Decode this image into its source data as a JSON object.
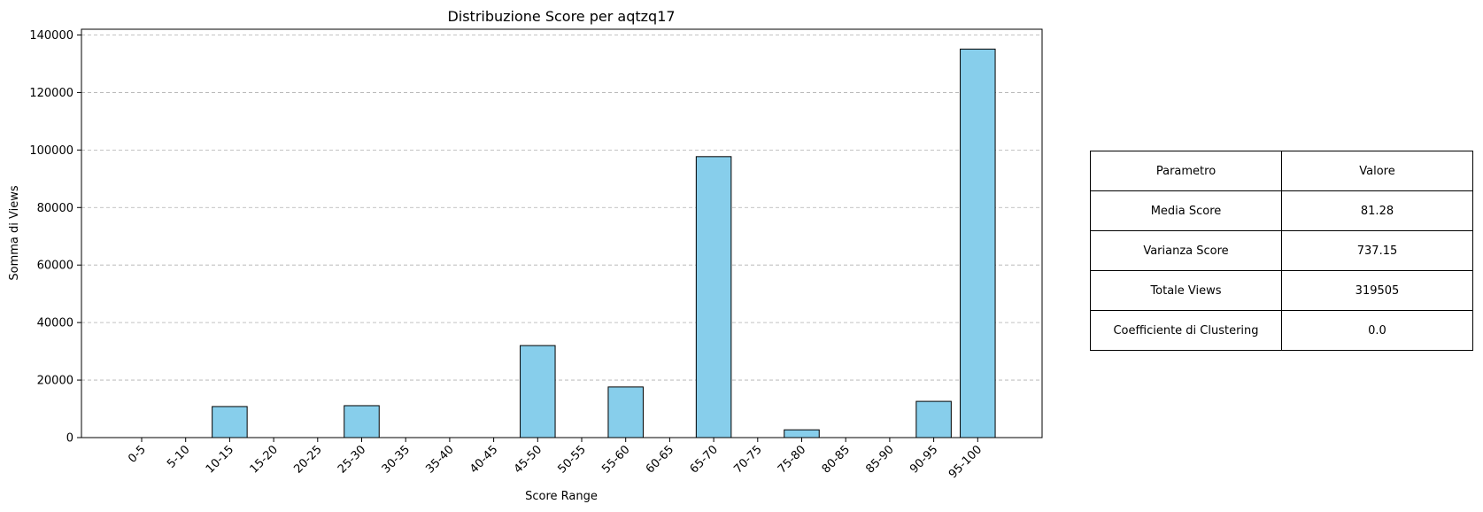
{
  "chart_data": {
    "type": "bar",
    "title": "Distribuzione Score per aqtzq17",
    "xlabel": "Score Range",
    "ylabel": "Somma di Views",
    "categories": [
      "0-5",
      "5-10",
      "10-15",
      "15-20",
      "20-25",
      "25-30",
      "30-35",
      "35-40",
      "40-45",
      "45-50",
      "50-55",
      "55-60",
      "60-65",
      "65-70",
      "70-75",
      "75-80",
      "80-85",
      "85-90",
      "90-95",
      "95-100"
    ],
    "values": [
      0,
      0,
      10800,
      0,
      0,
      11100,
      0,
      0,
      0,
      32000,
      0,
      17600,
      0,
      97700,
      0,
      2700,
      0,
      0,
      12600,
      135100
    ],
    "ylim": [
      0,
      142000
    ],
    "yticks": [
      0,
      20000,
      40000,
      60000,
      80000,
      100000,
      120000,
      140000
    ],
    "grid": "y-dashed",
    "bar_color": "#87ceeb",
    "edge_color": "#000000"
  },
  "table": {
    "headers": [
      "Parametro",
      "Valore"
    ],
    "rows": [
      [
        "Media Score",
        "81.28"
      ],
      [
        "Varianza Score",
        "737.15"
      ],
      [
        "Totale Views",
        "319505"
      ],
      [
        "Coefficiente di Clustering",
        "0.0"
      ]
    ]
  }
}
